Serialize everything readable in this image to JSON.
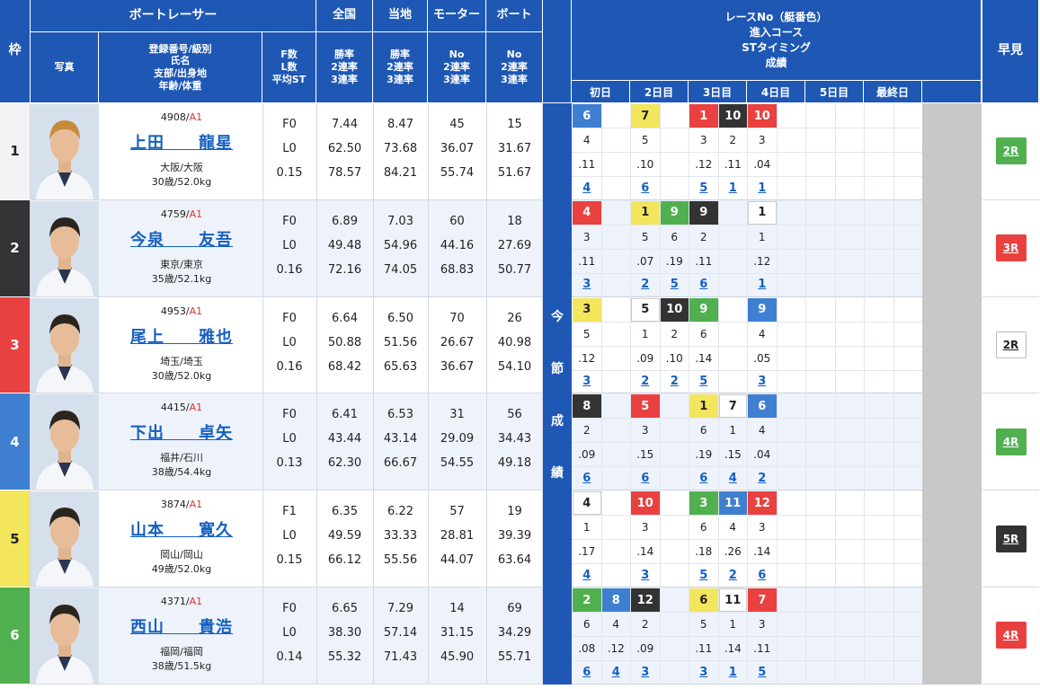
{
  "header": {
    "waku": "枠",
    "boatracer": "ボートレーサー",
    "photo": "写真",
    "info": "登録番号/級別\n氏名\n支部/出身地\n年齢/体重",
    "fl": "F数\nL数\n平均ST",
    "zenkoku": "全国",
    "touchi": "当地",
    "motor": "モーター",
    "boat": "ボート",
    "rate": "勝率\n2連率\n3連率",
    "no_rate": "No\n2連率\n3連率",
    "race_info": "レースNo（艇番色）\n進入コース\nSTタイミング\n成績",
    "hayami": "早見",
    "konsetsu": [
      "今",
      "節",
      "成",
      "績"
    ],
    "days": [
      "初日",
      "2日目",
      "3日目",
      "4日目",
      "5日目",
      "最終日"
    ]
  },
  "colors": {
    "header": "#1e58b4",
    "b1": "#ffffff",
    "b2": "#333333",
    "b3": "#e94040",
    "b4": "#3f7fd1",
    "b5": "#f3e55c",
    "b6": "#50b050",
    "gray": "#c8c8c8"
  },
  "racers": [
    {
      "waku": "1",
      "reg": "4908",
      "cls": "A1",
      "name": "上田　　龍星",
      "branch": "大阪/大阪",
      "age": "30歳/52.0kg",
      "f": "F0",
      "l": "L0",
      "st": "0.15",
      "nat": [
        "7.44",
        "62.50",
        "78.57"
      ],
      "loc": [
        "8.47",
        "73.68",
        "84.21"
      ],
      "mot": [
        "45",
        "36.07",
        "55.74"
      ],
      "bt": [
        "15",
        "31.67",
        "51.67"
      ],
      "hayami": "2R",
      "hb": 6,
      "races": [
        {
          "c": 0,
          "no": "6",
          "b": 4,
          "crs": "4",
          "st": ".11",
          "rank": "4"
        },
        {
          "c": 2,
          "no": "7",
          "b": 5,
          "crs": "5",
          "st": ".10",
          "rank": "6"
        },
        {
          "c": 4,
          "no": "1",
          "b": 3,
          "crs": "3",
          "st": ".12",
          "rank": "5"
        },
        {
          "c": 5,
          "no": "10",
          "b": 2,
          "crs": "2",
          "st": ".11",
          "rank": "1"
        },
        {
          "c": 6,
          "no": "10",
          "b": 3,
          "crs": "3",
          "st": ".04",
          "rank": "1"
        }
      ]
    },
    {
      "waku": "2",
      "reg": "4759",
      "cls": "A1",
      "name": "今泉　　友吾",
      "branch": "東京/東京",
      "age": "35歳/52.1kg",
      "f": "F0",
      "l": "L0",
      "st": "0.16",
      "nat": [
        "6.89",
        "49.48",
        "72.16"
      ],
      "loc": [
        "7.03",
        "54.96",
        "74.05"
      ],
      "mot": [
        "60",
        "44.16",
        "68.83"
      ],
      "bt": [
        "18",
        "27.69",
        "50.77"
      ],
      "hayami": "3R",
      "hb": 3,
      "races": [
        {
          "c": 0,
          "no": "4",
          "b": 3,
          "crs": "3",
          "st": ".11",
          "rank": "3"
        },
        {
          "c": 2,
          "no": "1",
          "b": 5,
          "crs": "5",
          "st": ".07",
          "rank": "2"
        },
        {
          "c": 3,
          "no": "9",
          "b": 6,
          "crs": "6",
          "st": ".19",
          "rank": "5"
        },
        {
          "c": 4,
          "no": "9",
          "b": 2,
          "crs": "2",
          "st": ".11",
          "rank": "6"
        },
        {
          "c": 6,
          "no": "1",
          "b": 1,
          "crs": "1",
          "st": ".12",
          "rank": "1"
        }
      ]
    },
    {
      "waku": "3",
      "reg": "4953",
      "cls": "A1",
      "name": "尾上　　雅也",
      "branch": "埼玉/埼玉",
      "age": "30歳/52.0kg",
      "f": "F0",
      "l": "L0",
      "st": "0.16",
      "nat": [
        "6.64",
        "50.88",
        "68.42"
      ],
      "loc": [
        "6.50",
        "51.56",
        "65.63"
      ],
      "mot": [
        "70",
        "26.67",
        "36.67"
      ],
      "bt": [
        "26",
        "40.98",
        "54.10"
      ],
      "hayami": "2R",
      "hb": 1,
      "races": [
        {
          "c": 0,
          "no": "3",
          "b": 5,
          "crs": "5",
          "st": ".12",
          "rank": "3"
        },
        {
          "c": 2,
          "no": "5",
          "b": 1,
          "crs": "1",
          "st": ".09",
          "rank": "2"
        },
        {
          "c": 3,
          "no": "10",
          "b": 2,
          "crs": "2",
          "st": ".10",
          "rank": "2"
        },
        {
          "c": 4,
          "no": "9",
          "b": 6,
          "crs": "6",
          "st": ".14",
          "rank": "5"
        },
        {
          "c": 6,
          "no": "9",
          "b": 4,
          "crs": "4",
          "st": ".05",
          "rank": "3"
        }
      ]
    },
    {
      "waku": "4",
      "reg": "4415",
      "cls": "A1",
      "name": "下出　　卓矢",
      "branch": "福井/石川",
      "age": "38歳/54.4kg",
      "f": "F0",
      "l": "L0",
      "st": "0.13",
      "nat": [
        "6.41",
        "43.44",
        "62.30"
      ],
      "loc": [
        "6.53",
        "43.14",
        "66.67"
      ],
      "mot": [
        "31",
        "29.09",
        "54.55"
      ],
      "bt": [
        "56",
        "34.43",
        "49.18"
      ],
      "hayami": "4R",
      "hb": 6,
      "races": [
        {
          "c": 0,
          "no": "8",
          "b": 2,
          "crs": "2",
          "st": ".09",
          "rank": "6"
        },
        {
          "c": 2,
          "no": "5",
          "b": 3,
          "crs": "3",
          "st": ".15",
          "rank": "6"
        },
        {
          "c": 4,
          "no": "1",
          "b": 5,
          "crs": "6",
          "st": ".19",
          "rank": "6"
        },
        {
          "c": 5,
          "no": "7",
          "b": 1,
          "crs": "1",
          "st": ".15",
          "rank": "4"
        },
        {
          "c": 6,
          "no": "6",
          "b": 4,
          "crs": "4",
          "st": ".04",
          "rank": "2"
        }
      ]
    },
    {
      "waku": "5",
      "reg": "3874",
      "cls": "A1",
      "name": "山本　　寛久",
      "branch": "岡山/岡山",
      "age": "49歳/52.0kg",
      "f": "F1",
      "l": "L0",
      "st": "0.15",
      "nat": [
        "6.35",
        "49.59",
        "66.12"
      ],
      "loc": [
        "6.22",
        "33.33",
        "55.56"
      ],
      "mot": [
        "57",
        "28.81",
        "44.07"
      ],
      "bt": [
        "19",
        "39.39",
        "63.64"
      ],
      "hayami": "5R",
      "hb": 2,
      "races": [
        {
          "c": 0,
          "no": "4",
          "b": 1,
          "crs": "1",
          "st": ".17",
          "rank": "4"
        },
        {
          "c": 2,
          "no": "10",
          "b": 3,
          "crs": "3",
          "st": ".14",
          "rank": "3"
        },
        {
          "c": 4,
          "no": "3",
          "b": 6,
          "crs": "6",
          "st": ".18",
          "rank": "5"
        },
        {
          "c": 5,
          "no": "11",
          "b": 4,
          "crs": "4",
          "st": ".26",
          "rank": "2"
        },
        {
          "c": 6,
          "no": "12",
          "b": 3,
          "crs": "3",
          "st": ".14",
          "rank": "6"
        }
      ]
    },
    {
      "waku": "6",
      "reg": "4371",
      "cls": "A1",
      "name": "西山　　貴浩",
      "branch": "福岡/福岡",
      "age": "38歳/51.5kg",
      "f": "F0",
      "l": "L0",
      "st": "0.14",
      "nat": [
        "6.65",
        "38.30",
        "55.32"
      ],
      "loc": [
        "7.29",
        "57.14",
        "71.43"
      ],
      "mot": [
        "14",
        "31.15",
        "45.90"
      ],
      "bt": [
        "69",
        "34.29",
        "55.71"
      ],
      "hayami": "4R",
      "hb": 3,
      "races": [
        {
          "c": 0,
          "no": "2",
          "b": 6,
          "crs": "6",
          "st": ".08",
          "rank": "6"
        },
        {
          "c": 1,
          "no": "8",
          "b": 4,
          "crs": "4",
          "st": ".12",
          "rank": "4"
        },
        {
          "c": 2,
          "no": "12",
          "b": 2,
          "crs": "2",
          "st": ".09",
          "rank": "3"
        },
        {
          "c": 4,
          "no": "6",
          "b": 5,
          "crs": "5",
          "st": ".11",
          "rank": "3"
        },
        {
          "c": 5,
          "no": "11",
          "b": 1,
          "crs": "1",
          "st": ".14",
          "rank": "1"
        },
        {
          "c": 6,
          "no": "7",
          "b": 3,
          "crs": "3",
          "st": ".11",
          "rank": "5"
        }
      ]
    }
  ]
}
